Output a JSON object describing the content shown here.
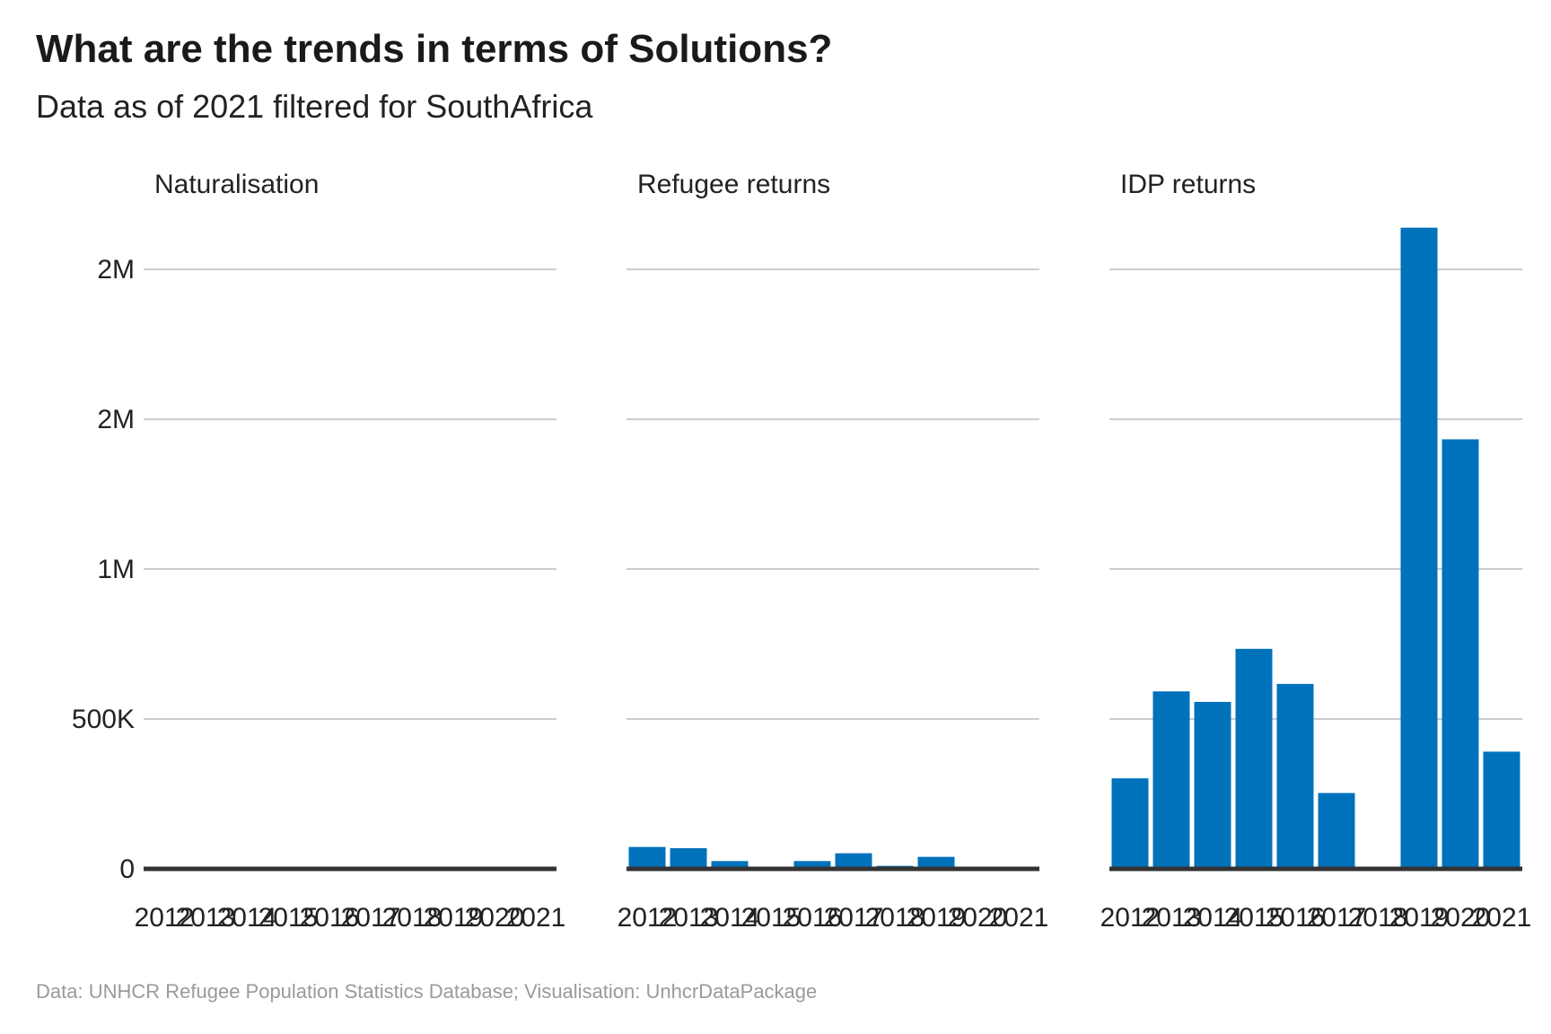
{
  "title": "What are the trends in terms of Solutions?",
  "subtitle": "Data as of 2021 filtered for SouthAfrica",
  "caption": "Data: UNHCR Refugee Population Statistics Database; Visualisation: UnhcrDataPackage",
  "colors": {
    "bar": "#0072BC",
    "grid": "#cccccc",
    "baseline": "#333333"
  },
  "chart_data": {
    "type": "bar",
    "categories": [
      "2012",
      "2013",
      "2014",
      "2015",
      "2016",
      "2017",
      "2018",
      "2019",
      "2020",
      "2021"
    ],
    "ylim": [
      0,
      2150000
    ],
    "y_ticks": [
      {
        "value": 0,
        "label": "0"
      },
      {
        "value": 500000,
        "label": "500K"
      },
      {
        "value": 1000000,
        "label": "1M"
      },
      {
        "value": 1500000,
        "label": "2M"
      },
      {
        "value": 2000000,
        "label": "2M"
      }
    ],
    "grid": true,
    "facets": [
      {
        "name": "Naturalisation",
        "values": [
          0,
          0,
          0,
          0,
          0,
          0,
          0,
          0,
          0,
          0
        ]
      },
      {
        "name": "Refugee returns",
        "values": [
          73000,
          69000,
          26000,
          6000,
          26000,
          52000,
          10000,
          40000,
          4000,
          2000
        ]
      },
      {
        "name": "IDP returns",
        "values": [
          302000,
          592000,
          557000,
          734000,
          617000,
          253000,
          0,
          2139000,
          1433000,
          391000
        ]
      }
    ]
  }
}
